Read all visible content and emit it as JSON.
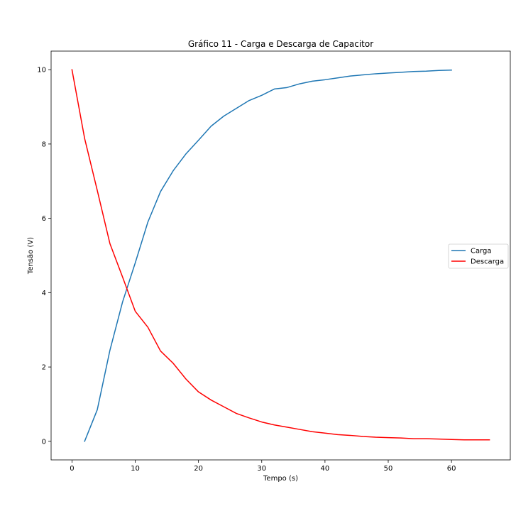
{
  "chart_data": {
    "type": "line",
    "title": "Gráfico 11 - Carga e Descarga de Capacitor",
    "xlabel": "Tempo (s)",
    "ylabel": "Tensão (V)",
    "xlim": [
      -3.3,
      69.3
    ],
    "ylim": [
      -0.5,
      10.5
    ],
    "xticks": [
      0,
      10,
      20,
      30,
      40,
      50,
      60
    ],
    "yticks": [
      0,
      2,
      4,
      6,
      8,
      10
    ],
    "grid": false,
    "legend_position": "center-right",
    "series": [
      {
        "name": "Carga",
        "color": "#1f77b4",
        "x": [
          2,
          4,
          6,
          8,
          10,
          12,
          14,
          16,
          18,
          20,
          22,
          24,
          26,
          28,
          30,
          32,
          34,
          36,
          38,
          40,
          42,
          44,
          46,
          48,
          50,
          52,
          54,
          56,
          58,
          60
        ],
        "y": [
          0.0,
          0.85,
          2.45,
          3.75,
          4.8,
          5.9,
          6.72,
          7.28,
          7.73,
          8.1,
          8.48,
          8.75,
          8.96,
          9.17,
          9.31,
          9.48,
          9.52,
          9.62,
          9.69,
          9.73,
          9.78,
          9.83,
          9.86,
          9.89,
          9.91,
          9.93,
          9.95,
          9.96,
          9.98,
          9.99
        ]
      },
      {
        "name": "Descarga",
        "color": "#ff0000",
        "x": [
          0,
          2,
          4,
          6,
          8,
          10,
          12,
          14,
          16,
          18,
          20,
          22,
          24,
          26,
          28,
          30,
          32,
          34,
          36,
          38,
          40,
          42,
          44,
          46,
          48,
          50,
          52,
          54,
          56,
          58,
          60,
          62,
          64,
          66
        ],
        "y": [
          10.0,
          8.15,
          6.75,
          5.32,
          4.42,
          3.5,
          3.07,
          2.43,
          2.1,
          1.68,
          1.33,
          1.11,
          0.93,
          0.75,
          0.63,
          0.52,
          0.44,
          0.38,
          0.32,
          0.26,
          0.22,
          0.18,
          0.16,
          0.13,
          0.11,
          0.1,
          0.09,
          0.07,
          0.07,
          0.06,
          0.05,
          0.04,
          0.04,
          0.04
        ]
      }
    ]
  }
}
